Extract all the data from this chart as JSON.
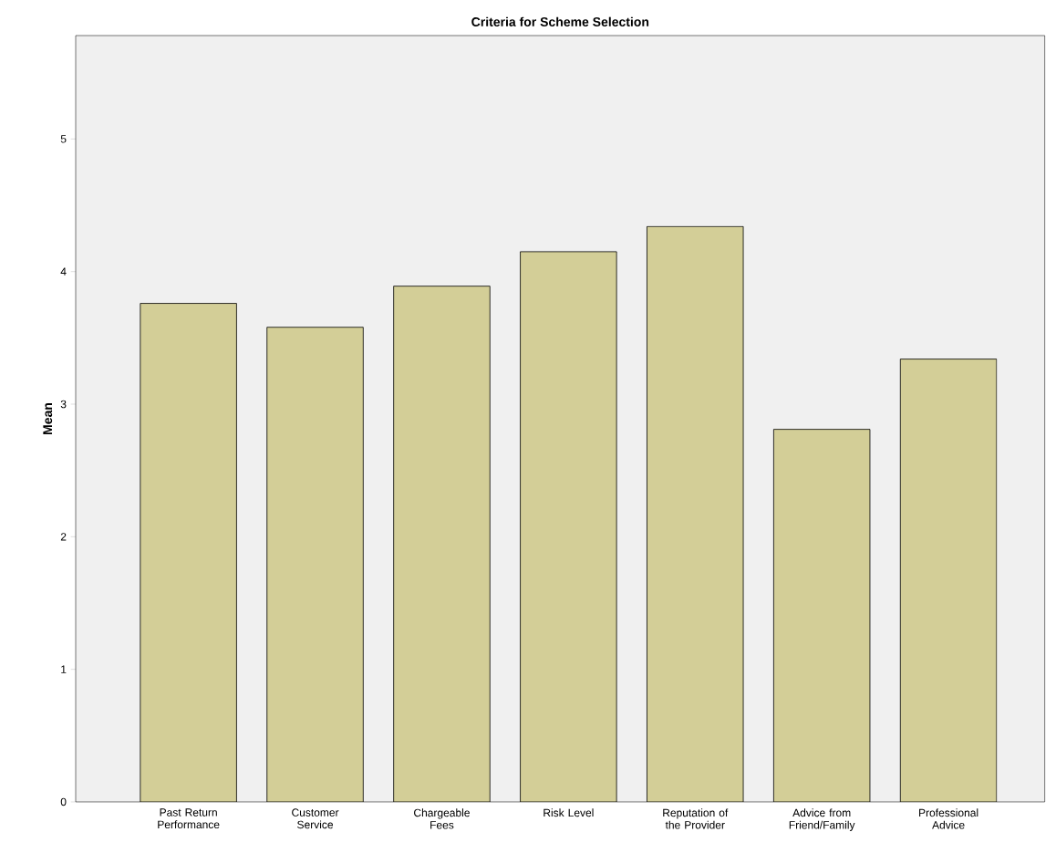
{
  "chart_data": {
    "type": "bar",
    "title": "Criteria for Scheme Selection",
    "ylabel": "Mean",
    "categories": [
      "Past Return Performance",
      "Customer Service",
      "Chargeable Fees",
      "Risk Level",
      "Reputation of the Provider",
      "Advice from Friend/Family",
      "Professional Advice"
    ],
    "values": [
      3.76,
      3.58,
      3.89,
      4.15,
      4.34,
      2.81,
      3.34
    ],
    "color": "#d3ce97",
    "ylim": [
      0,
      5.78
    ],
    "yticks": [
      0,
      1,
      2,
      3,
      4,
      5
    ]
  }
}
